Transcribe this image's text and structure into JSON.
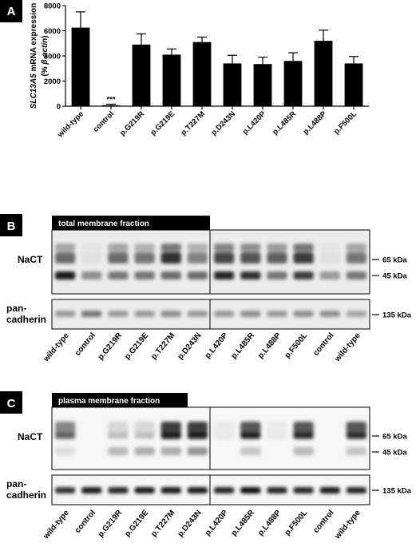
{
  "chart_data": {
    "type": "bar",
    "panel": "A",
    "ylabel": {
      "gene": "SLC13A5",
      "text": "mRNA expression",
      "open": "(% ",
      "ref": "β-actin",
      "close": ")"
    },
    "categories": [
      "wild-type",
      "control",
      "p.G219R",
      "p.G219E",
      "p.T227M",
      "p.D243N",
      "p.L420P",
      "p.L485R",
      "p.L488P",
      "p.F500L"
    ],
    "values": [
      6250,
      80,
      4900,
      4100,
      5100,
      3400,
      3350,
      3600,
      5200,
      3400
    ],
    "errors": [
      1250,
      80,
      850,
      450,
      400,
      650,
      550,
      650,
      850,
      550
    ],
    "color": "#000000",
    "annotations": [
      {
        "category": 1,
        "text": "***"
      }
    ],
    "ylim": [
      0,
      8000
    ],
    "yticks": [
      0,
      2000,
      4000,
      6000,
      8000
    ]
  },
  "blot_b": {
    "panel": "B",
    "title": "total membrane fraction",
    "row1": "NaCT",
    "row2": [
      "pan-",
      "cadherin"
    ],
    "markers": [
      "65 kDa",
      "45 kDa",
      "135 kDa"
    ],
    "lanes": [
      "wild-type",
      "control",
      "p.G219R",
      "p.G219E",
      "p.T227M",
      "p.D243N",
      "p.L420P",
      "p.L485R",
      "p.L488P",
      "p.F500L",
      "control",
      "wild-type"
    ]
  },
  "blot_c": {
    "panel": "C",
    "title": "plasma membrane fraction",
    "row1": "NaCT",
    "row2": [
      "pan-",
      "cadherin"
    ],
    "markers": [
      "65 kDa",
      "45 kDa",
      "135 kDa"
    ],
    "lanes": [
      "wild-type",
      "control",
      "p.G219R",
      "p.G219E",
      "p.T227M",
      "p.D243N",
      "p.L420P",
      "p.L485R",
      "p.L488P",
      "p.F500L",
      "control",
      "wild-type"
    ]
  }
}
